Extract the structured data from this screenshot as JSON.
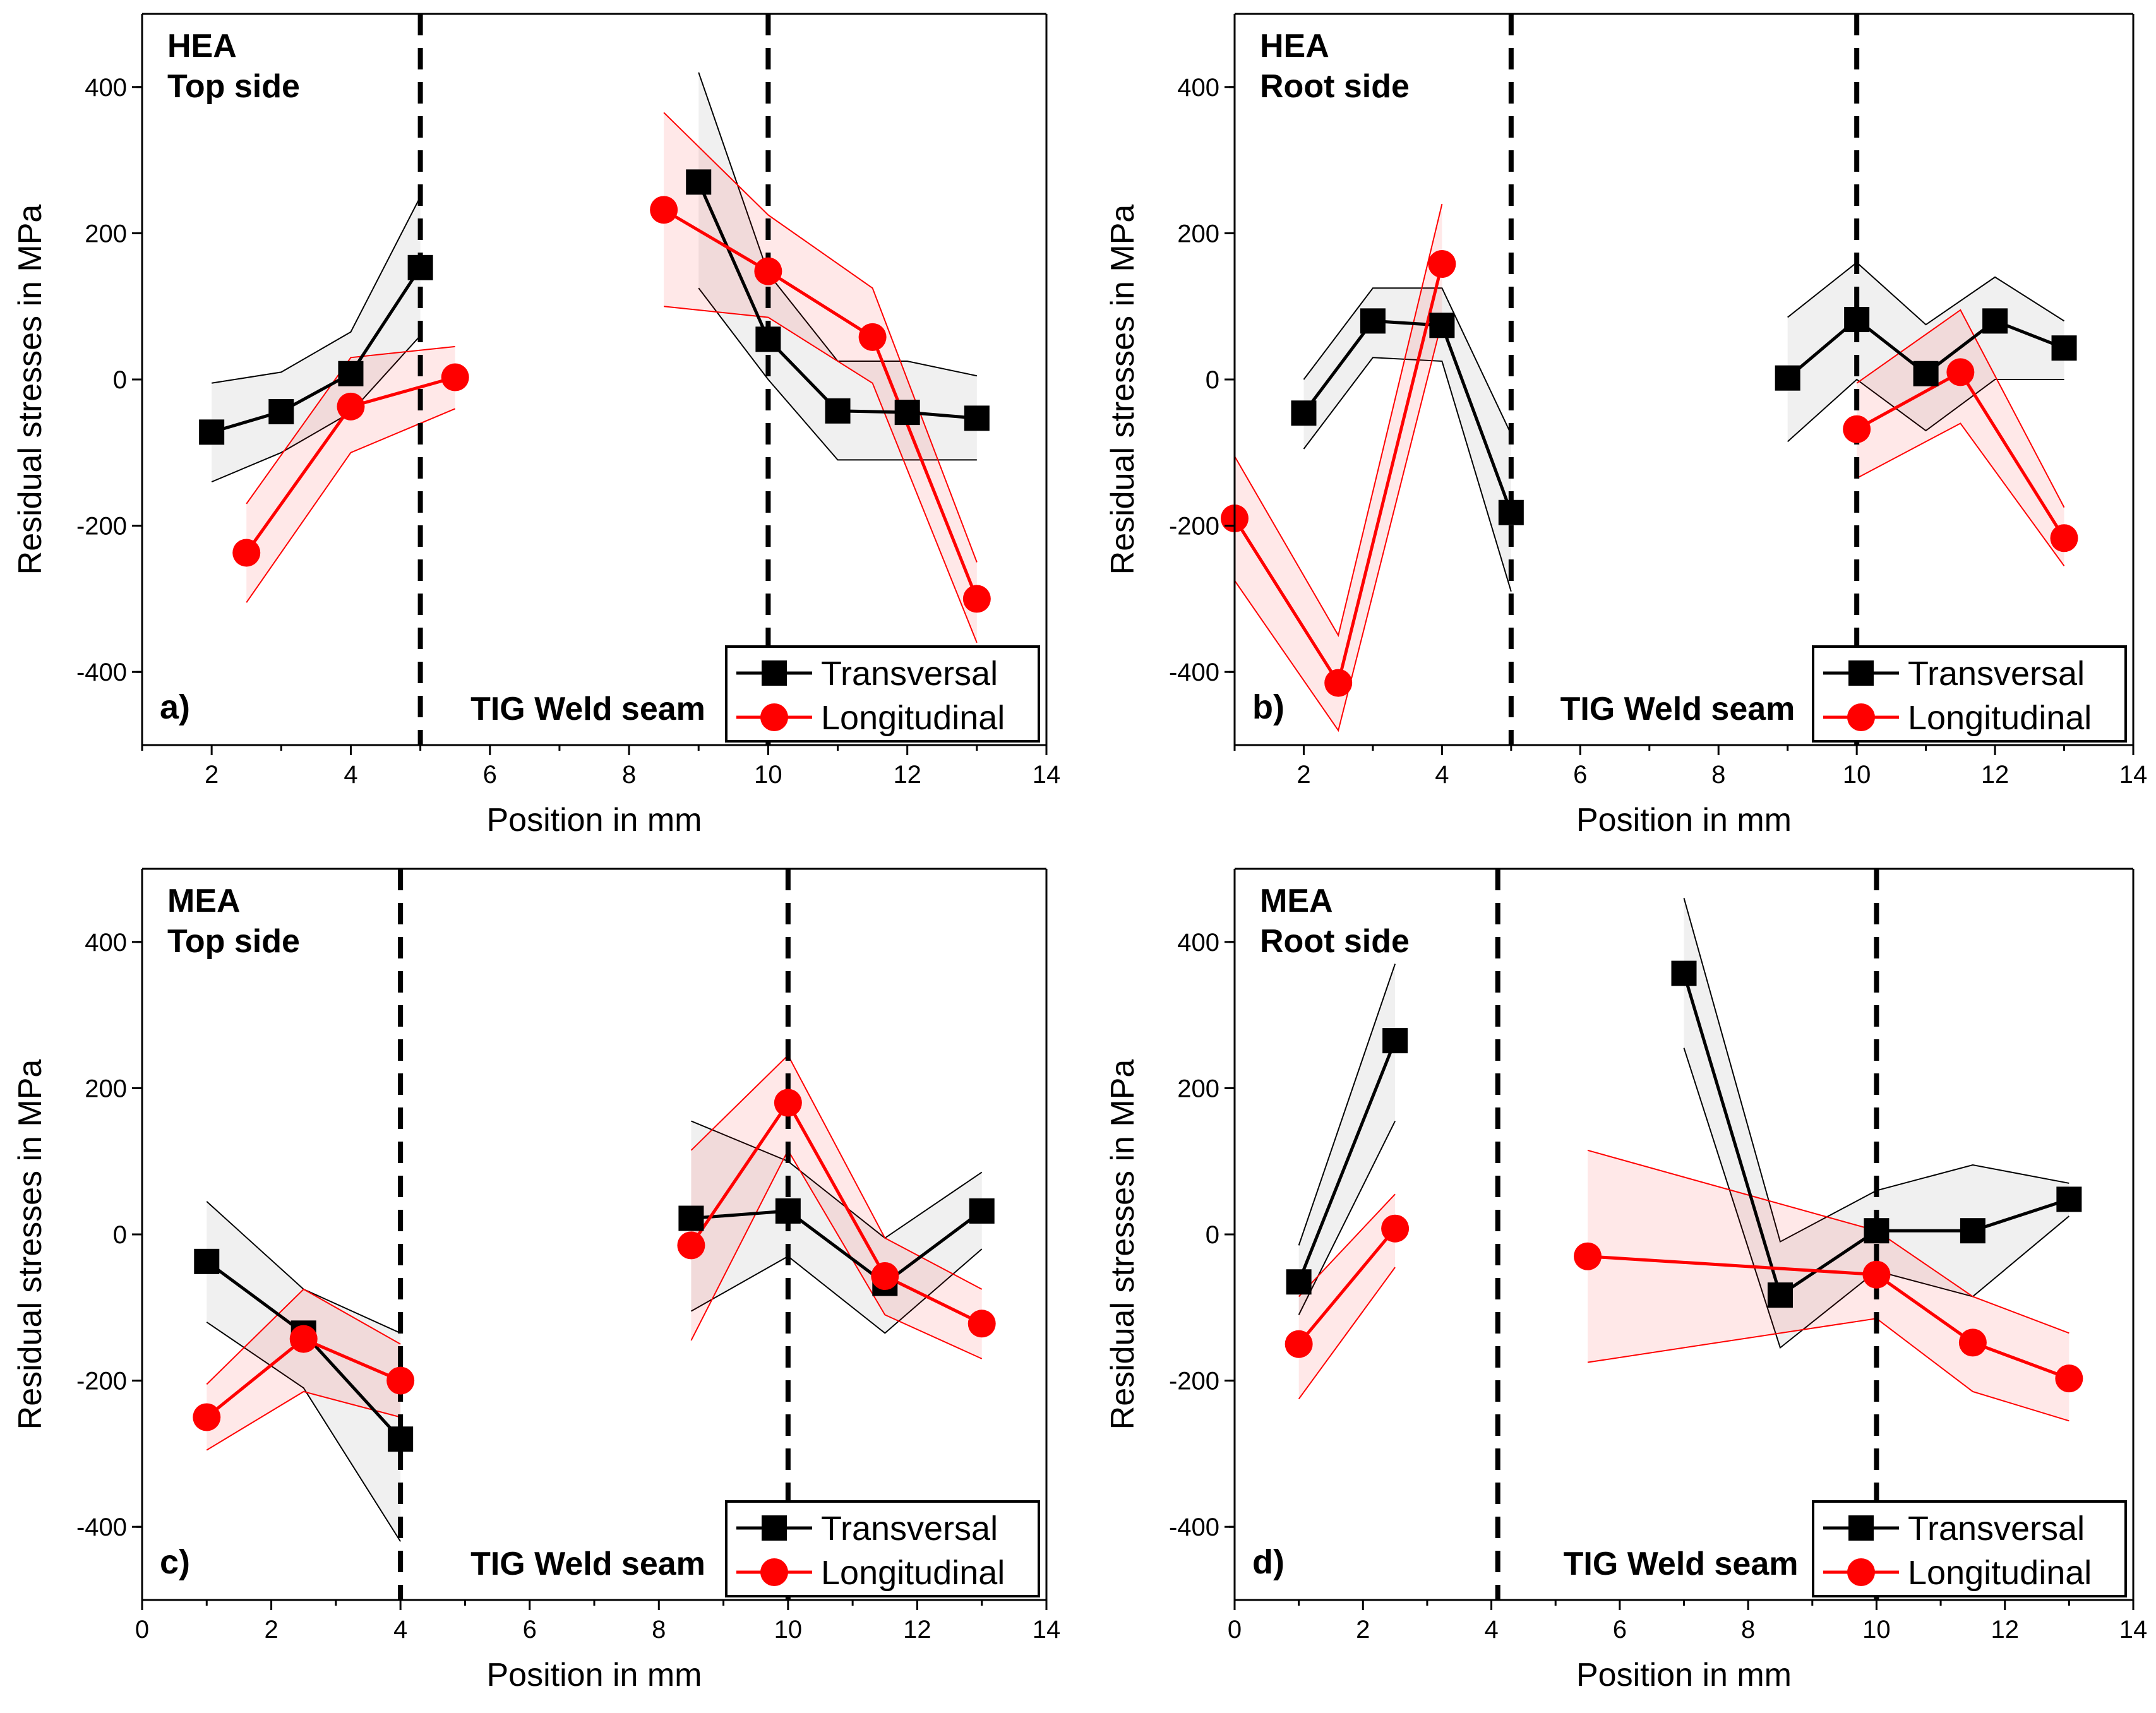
{
  "chart_data": [
    {
      "type": "line",
      "panel_letter": "a)",
      "title_lines": [
        "HEA",
        "Top side"
      ],
      "annotation": "TIG Weld seam",
      "xlabel": "Position in mm",
      "ylabel": "Residual stresses in MPa",
      "xlim": [
        1,
        14
      ],
      "ylim": [
        -500,
        500
      ],
      "xticks": [
        2,
        4,
        6,
        8,
        10,
        12,
        14
      ],
      "yticks": [
        -400,
        -200,
        0,
        200,
        400
      ],
      "vlines": [
        5,
        10
      ],
      "legend": [
        "Transversal",
        "Longitudinal"
      ],
      "series": [
        {
          "name": "Transversal",
          "color": "#000000",
          "segments": [
            {
              "x": [
                2,
                3,
                4,
                5
              ],
              "y": [
                -72,
                -44,
                8,
                153
              ],
              "lower": [
                -140,
                -100,
                -45,
                60
              ],
              "upper": [
                -5,
                10,
                65,
                250
              ]
            },
            {
              "x": [
                9,
                10,
                11,
                12,
                13
              ],
              "y": [
                270,
                55,
                -43,
                -45,
                -53
              ],
              "lower": [
                125,
                0,
                -110,
                -110,
                -110
              ],
              "upper": [
                420,
                145,
                25,
                25,
                5
              ]
            }
          ]
        },
        {
          "name": "Longitudinal",
          "color": "#ff0000",
          "segments": [
            {
              "x": [
                2.5,
                4,
                5.5
              ],
              "y": [
                -237,
                -37,
                3
              ],
              "lower": [
                -305,
                -100,
                -40
              ],
              "upper": [
                -170,
                30,
                45
              ]
            },
            {
              "x": [
                8.5,
                10,
                11.5,
                13
              ],
              "y": [
                232,
                148,
                58,
                -300
              ],
              "lower": [
                100,
                85,
                -5,
                -360
              ],
              "upper": [
                365,
                225,
                125,
                -250
              ]
            }
          ]
        }
      ]
    },
    {
      "type": "line",
      "panel_letter": "b)",
      "title_lines": [
        "HEA",
        "Root side"
      ],
      "annotation": "TIG Weld seam",
      "xlabel": "Position in mm",
      "ylabel": "Residual stresses in MPa",
      "xlim": [
        1,
        14
      ],
      "ylim": [
        -500,
        500
      ],
      "xticks": [
        2,
        4,
        6,
        8,
        10,
        12,
        14
      ],
      "yticks": [
        -400,
        -200,
        0,
        200,
        400
      ],
      "vlines": [
        5,
        10
      ],
      "legend": [
        "Transversal",
        "Longitudinal"
      ],
      "series": [
        {
          "name": "Transversal",
          "color": "#000000",
          "segments": [
            {
              "x": [
                2,
                3,
                4,
                5
              ],
              "y": [
                -46,
                80,
                74,
                -182
              ],
              "lower": [
                -95,
                30,
                25,
                -290
              ],
              "upper": [
                0,
                125,
                125,
                -75
              ]
            },
            {
              "x": [
                9,
                10,
                11,
                12,
                13
              ],
              "y": [
                2,
                82,
                8,
                80,
                43
              ],
              "lower": [
                -85,
                0,
                -70,
                0,
                0
              ],
              "upper": [
                85,
                160,
                75,
                140,
                80
              ]
            }
          ]
        },
        {
          "name": "Longitudinal",
          "color": "#ff0000",
          "segments": [
            {
              "x": [
                1,
                2.5,
                4
              ],
              "y": [
                -190,
                -415,
                158
              ],
              "lower": [
                -275,
                -480,
                80
              ],
              "upper": [
                -105,
                -350,
                240
              ]
            },
            {
              "x": [
                10,
                11.5,
                13
              ],
              "y": [
                -68,
                10,
                -217
              ],
              "lower": [
                -135,
                -60,
                -255
              ],
              "upper": [
                -5,
                95,
                -175
              ]
            }
          ]
        }
      ]
    },
    {
      "type": "line",
      "panel_letter": "c)",
      "title_lines": [
        "MEA",
        "Top side"
      ],
      "annotation": "TIG Weld seam",
      "xlabel": "Position in mm",
      "ylabel": "Residual stresses in MPa",
      "xlim": [
        0,
        14
      ],
      "ylim": [
        -500,
        500
      ],
      "xticks": [
        0,
        2,
        4,
        6,
        8,
        10,
        12,
        14
      ],
      "yticks": [
        -400,
        -200,
        0,
        200,
        400
      ],
      "vlines": [
        4,
        10
      ],
      "legend": [
        "Transversal",
        "Longitudinal"
      ],
      "series": [
        {
          "name": "Transversal",
          "color": "#000000",
          "segments": [
            {
              "x": [
                1,
                2.5,
                4
              ],
              "y": [
                -37,
                -135,
                -280
              ],
              "lower": [
                -120,
                -210,
                -420
              ],
              "upper": [
                45,
                -75,
                -135
              ]
            },
            {
              "x": [
                8.5,
                10,
                11.5,
                13
              ],
              "y": [
                22,
                32,
                -67,
                32
              ],
              "lower": [
                -105,
                -30,
                -135,
                -20
              ],
              "upper": [
                155,
                100,
                -5,
                85
              ]
            }
          ]
        },
        {
          "name": "Longitudinal",
          "color": "#ff0000",
          "segments": [
            {
              "x": [
                1,
                2.5,
                4
              ],
              "y": [
                -250,
                -143,
                -200
              ],
              "lower": [
                -295,
                -215,
                -250
              ],
              "upper": [
                -205,
                -75,
                -150
              ]
            },
            {
              "x": [
                8.5,
                10,
                11.5,
                13
              ],
              "y": [
                -15,
                180,
                -57,
                -122
              ],
              "lower": [
                -145,
                115,
                -110,
                -170
              ],
              "upper": [
                115,
                245,
                -5,
                -75
              ]
            }
          ]
        }
      ]
    },
    {
      "type": "line",
      "panel_letter": "d)",
      "title_lines": [
        "MEA",
        "Root side"
      ],
      "annotation": "TIG Weld seam",
      "xlabel": "Position in mm",
      "ylabel": "Residual stresses in MPa",
      "xlim": [
        0,
        14
      ],
      "ylim": [
        -500,
        500
      ],
      "xticks": [
        0,
        2,
        4,
        6,
        8,
        10,
        12,
        14
      ],
      "yticks": [
        -400,
        -200,
        0,
        200,
        400
      ],
      "vlines": [
        4.1,
        10
      ],
      "legend": [
        "Transversal",
        "Longitudinal"
      ],
      "series": [
        {
          "name": "Transversal",
          "color": "#000000",
          "segments": [
            {
              "x": [
                1,
                2.5
              ],
              "y": [
                -65,
                265
              ],
              "lower": [
                -110,
                155
              ],
              "upper": [
                -15,
                370
              ]
            },
            {
              "x": [
                7,
                8.5,
                10,
                11.5,
                13
              ],
              "y": [
                357,
                -83,
                5,
                5,
                48
              ],
              "lower": [
                255,
                -155,
                -50,
                -85,
                25
              ],
              "upper": [
                460,
                -10,
                60,
                95,
                70
              ]
            }
          ]
        },
        {
          "name": "Longitudinal",
          "color": "#ff0000",
          "segments": [
            {
              "x": [
                1,
                2.5
              ],
              "y": [
                -150,
                8
              ],
              "lower": [
                -225,
                -45
              ],
              "upper": [
                -85,
                55
              ]
            },
            {
              "x": [
                5.5,
                10,
                11.5,
                13
              ],
              "y": [
                -30,
                -55,
                -148,
                -197
              ],
              "lower": [
                -175,
                -115,
                -215,
                -255
              ],
              "upper": [
                115,
                5,
                -85,
                -135
              ]
            }
          ]
        }
      ]
    }
  ]
}
